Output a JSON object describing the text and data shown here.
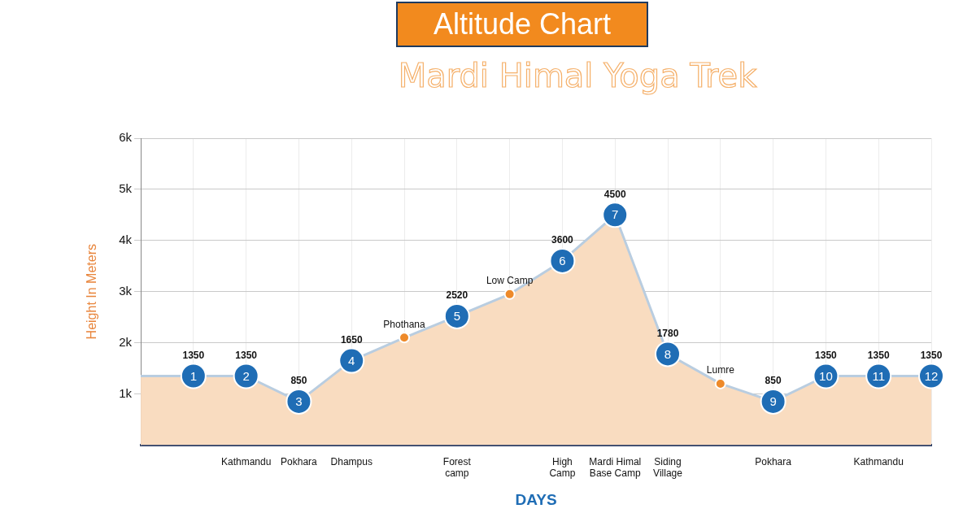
{
  "chart_data": {
    "type": "area",
    "title": "Altitude Chart",
    "subtitle": "Mardi Himal Yoga Trek",
    "xlabel": "DAYS",
    "ylabel": "Height In Meters",
    "categories": [
      null,
      null,
      "Kathmandu",
      "Pokhara",
      "Dhampus",
      null,
      "Forest camp",
      null,
      "High Camp",
      "Mardi Himal Base Camp",
      "Siding Village",
      null,
      "Pokhara",
      null,
      "Kathmandu",
      null
    ],
    "ylim": [
      0,
      6000
    ],
    "yticks": [
      {
        "value": 1000,
        "label": "1k"
      },
      {
        "value": 2000,
        "label": "2k"
      },
      {
        "value": 3000,
        "label": "3k"
      },
      {
        "value": 4000,
        "label": "4k"
      },
      {
        "value": 5000,
        "label": "5k"
      },
      {
        "value": 6000,
        "label": "6k"
      }
    ],
    "grid": true,
    "legend": false,
    "series": [
      {
        "color": "#b9cde0",
        "marker": "none",
        "values": [
          1350,
          1350,
          1350,
          850,
          1650,
          2100,
          2520,
          2950,
          3600,
          4500,
          1780,
          1200,
          850,
          1350,
          1350,
          1350
        ]
      },
      {
        "type": "scatter",
        "color": "#1f6db5",
        "marker": "circle",
        "values": [
          null,
          1350,
          1350,
          850,
          1650,
          null,
          2520,
          null,
          3600,
          4500,
          1780,
          null,
          850,
          1350,
          1350,
          1350
        ],
        "value_labels": [
          null,
          "1350",
          "1350",
          "850",
          "1650",
          null,
          "2520",
          null,
          "3600",
          "4500",
          "1780",
          null,
          "850",
          "1350",
          "1350",
          "1350"
        ]
      },
      {
        "type": "scatter",
        "color": "#ee8a2a",
        "marker": "circle",
        "values": [
          null,
          null,
          null,
          null,
          null,
          2100,
          null,
          2950,
          null,
          null,
          null,
          1200,
          null,
          null,
          null,
          null
        ],
        "value_labels": [
          null,
          null,
          null,
          null,
          null,
          "Phothana",
          null,
          "Low Camp",
          null,
          null,
          null,
          "Lumre",
          null,
          null,
          null,
          null
        ]
      }
    ],
    "annotations": [
      "1",
      "2",
      "3",
      "4",
      "5",
      "6",
      "7",
      "8",
      "9",
      "10",
      "11",
      "12"
    ]
  }
}
